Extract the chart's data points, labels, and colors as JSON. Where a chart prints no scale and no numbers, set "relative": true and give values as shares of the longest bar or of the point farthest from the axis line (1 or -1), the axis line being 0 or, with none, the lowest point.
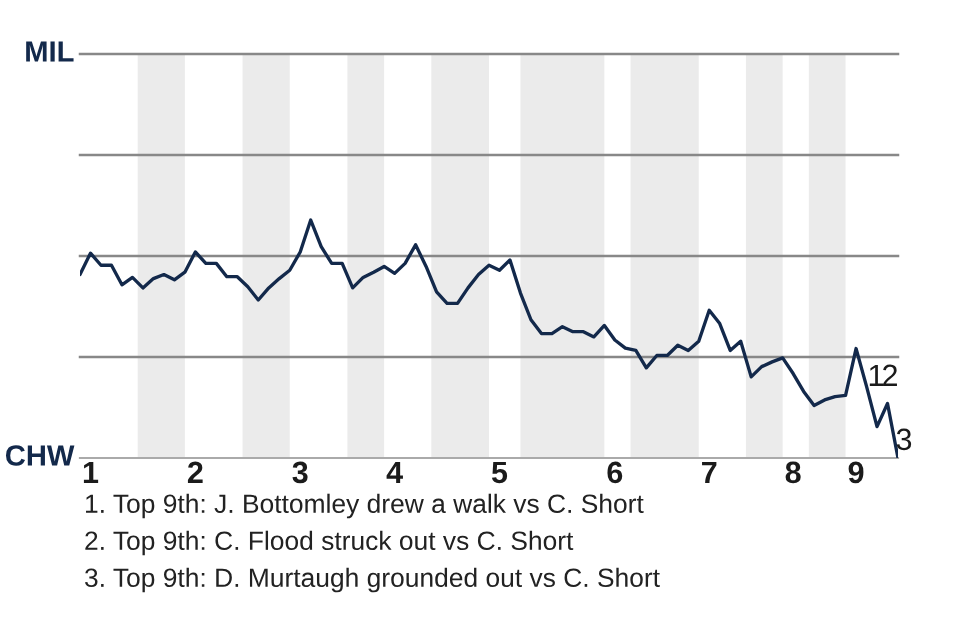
{
  "chart_data": {
    "type": "line",
    "relative": true,
    "categories": [
      null,
      "1",
      null,
      null,
      null,
      null,
      null,
      null,
      null,
      null,
      null,
      "2",
      null,
      null,
      null,
      null,
      null,
      null,
      null,
      null,
      null,
      "3",
      null,
      null,
      null,
      null,
      null,
      null,
      null,
      null,
      "4",
      null,
      null,
      null,
      null,
      null,
      null,
      null,
      null,
      null,
      "5",
      null,
      null,
      null,
      null,
      null,
      null,
      null,
      null,
      null,
      null,
      "6",
      null,
      null,
      null,
      null,
      null,
      null,
      null,
      null,
      "7",
      null,
      null,
      null,
      null,
      null,
      null,
      null,
      "8",
      null,
      null,
      null,
      null,
      null,
      "9",
      null,
      null,
      null,
      null
    ],
    "series": [
      {
        "color": "#13294b",
        "values": [
          0.771,
          0.861,
          0.81,
          0.81,
          0.728,
          0.759,
          0.715,
          0.754,
          0.771,
          0.749,
          0.781,
          0.866,
          0.818,
          0.818,
          0.762,
          0.762,
          0.72,
          0.664,
          0.715,
          0.754,
          0.789,
          0.866,
          1,
          0.888,
          0.818,
          0.818,
          0.715,
          0.759,
          0.781,
          0.805,
          0.776,
          0.818,
          0.896,
          0.805,
          0.698,
          0.65,
          0.65,
          0.715,
          0.771,
          0.81,
          0.789,
          0.832,
          0.693,
          0.581,
          0.523,
          0.523,
          0.552,
          0.531,
          0.531,
          0.509,
          0.557,
          0.496,
          0.462,
          0.452,
          0.379,
          0.431,
          0.431,
          0.474,
          0.452,
          0.491,
          0.621,
          0.565,
          0.452,
          0.491,
          0.341,
          0.384,
          0.404,
          0.421,
          0.355,
          0.28,
          0.221,
          0.244,
          0.258,
          0.263,
          0.46,
          0.301,
          0.132,
          0.229,
          0
        ]
      }
    ],
    "ref_lines": [
      {
        "axis": "y",
        "value": 0.424,
        "color": "#888888"
      },
      {
        "axis": "y",
        "value": 0.849,
        "color": "#888888"
      },
      {
        "axis": "y",
        "value": 1.273,
        "color": "#888888"
      },
      {
        "axis": "y",
        "value": 1.698,
        "label": "MIL",
        "color": "#888888"
      }
    ],
    "annotations": [
      "CHW",
      "1",
      "2",
      "3",
      "1. Top 9th: J. Bottomley drew a walk vs C. Short",
      "2. Top 9th: C. Flood struck out vs C. Short",
      "3. Top 9th: D. Murtaugh grounded out vs C. Short"
    ]
  }
}
